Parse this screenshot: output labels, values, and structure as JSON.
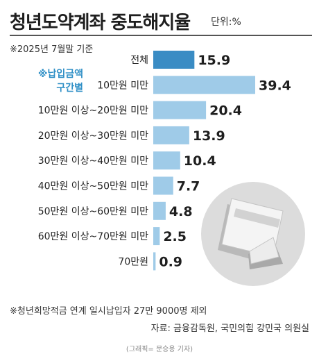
{
  "title": "청년도약계좌 중도해지율",
  "unit": "단위:%",
  "basis": "※2025년 7월말 기준",
  "group_label_line1": "※납입금액",
  "group_label_line2": "구간별",
  "footnote": "※청년희망적금 연계 일시납입자 27만 9000명 제외",
  "source": "자료: 금융감독원, 국민의힘 강민국 의원실",
  "credit": "(그래픽= 문승용 기자)",
  "colors": {
    "highlight_bar": "#3a8cc4",
    "bar": "#9fcbe8",
    "group_label": "#2f8fc6",
    "decoration_circle": "#dcdcdc"
  },
  "decoration_icon": "card-icon",
  "chart_data": {
    "type": "bar",
    "orientation": "horizontal",
    "categories": [
      "전체",
      "10만원 미만",
      "10만원 이상~20만원 미만",
      "20만원 이상~30만원 미만",
      "30만원 이상~40만원 미만",
      "40만원 이상~50만원 미만",
      "50만원 이상~60만원 미만",
      "60만원 이상~70만원 미만",
      "70만원"
    ],
    "values": [
      15.9,
      39.4,
      20.4,
      13.9,
      10.4,
      7.7,
      4.8,
      2.5,
      0.9
    ],
    "value_labels": [
      "15.9",
      "39.4",
      "20.4",
      "13.9",
      "10.4",
      "7.7",
      "4.8",
      "2.5",
      "0.9"
    ],
    "highlight_index": 0,
    "xlim": [
      0,
      39.4
    ],
    "unit": "%"
  }
}
